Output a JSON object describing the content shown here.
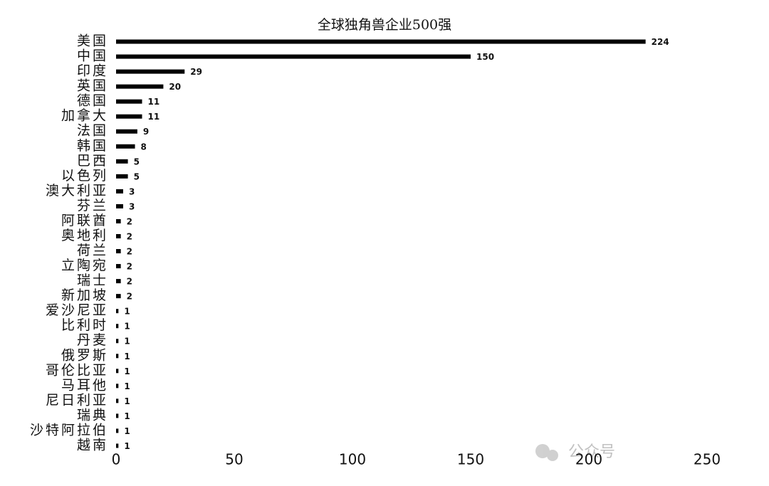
{
  "chart_data": {
    "type": "bar",
    "orientation": "horizontal",
    "title": "全球独角兽企业500强",
    "categories": [
      "美国",
      "中国",
      "印度",
      "英国",
      "德国",
      "加拿大",
      "法国",
      "韩国",
      "巴西",
      "以色列",
      "澳大利亚",
      "芬兰",
      "阿联酋",
      "奥地利",
      "荷兰",
      "立陶宛",
      "瑞士",
      "新加坡",
      "爱沙尼亚",
      "比利时",
      "丹麦",
      "俄罗斯",
      "哥伦比亚",
      "马耳他",
      "尼日利亚",
      "瑞典",
      "沙特阿拉伯",
      "越南"
    ],
    "values": [
      224,
      150,
      29,
      20,
      11,
      11,
      9,
      8,
      5,
      5,
      3,
      3,
      2,
      2,
      2,
      2,
      2,
      2,
      1,
      1,
      1,
      1,
      1,
      1,
      1,
      1,
      1,
      1
    ],
    "color": "#000000",
    "xlim": [
      0,
      250
    ],
    "xticks": [
      0,
      50,
      100,
      150,
      200,
      250
    ],
    "watermark": "公众号"
  }
}
